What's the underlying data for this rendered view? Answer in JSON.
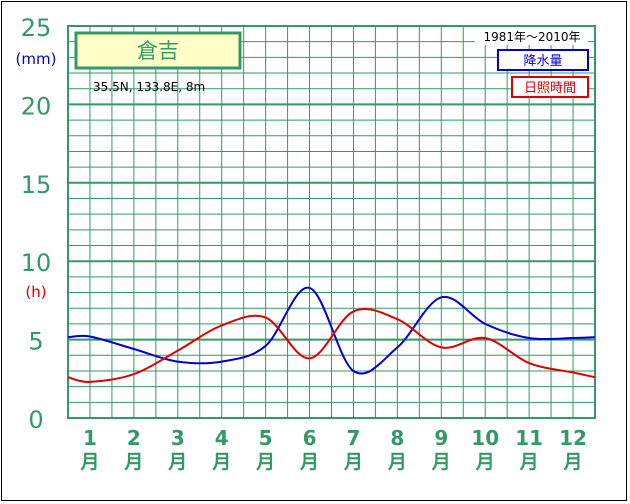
{
  "chart_data": {
    "type": "line",
    "title": "倉吉",
    "location": "35.5N,  133.8E,  8m",
    "period": "1981年〜2010年",
    "units": {
      "precip": "(mm)",
      "sun": "(h)"
    },
    "legend": [
      "降水量",
      "日照時間"
    ],
    "colors": {
      "precip": "#0000cc",
      "sun": "#dd0000",
      "grid": "#339966",
      "axis_text": "#339966",
      "title_bg": "#ffffc8"
    },
    "y_ticks": [
      "25",
      "20",
      "15",
      "10",
      "5",
      "0"
    ],
    "ylim": [
      0,
      25
    ],
    "months": [
      "1",
      "2",
      "3",
      "4",
      "5",
      "6",
      "7",
      "8",
      "9",
      "10",
      "11",
      "12"
    ],
    "month_unit": "月",
    "x": [
      0.5,
      1.5,
      2.5,
      3.5,
      4.5,
      5.5,
      6.5,
      7.5,
      8.5,
      9.5,
      10.5,
      11.5
    ],
    "series": [
      {
        "name": "降水量",
        "values": [
          5.2,
          4.4,
          3.6,
          3.6,
          4.6,
          8.3,
          3.0,
          4.5,
          7.7,
          6.0,
          5.1,
          5.1
        ]
      },
      {
        "name": "日照時間",
        "values": [
          2.3,
          2.8,
          4.3,
          5.9,
          6.4,
          3.8,
          6.8,
          6.3,
          4.5,
          5.1,
          3.5,
          2.9
        ]
      }
    ]
  }
}
